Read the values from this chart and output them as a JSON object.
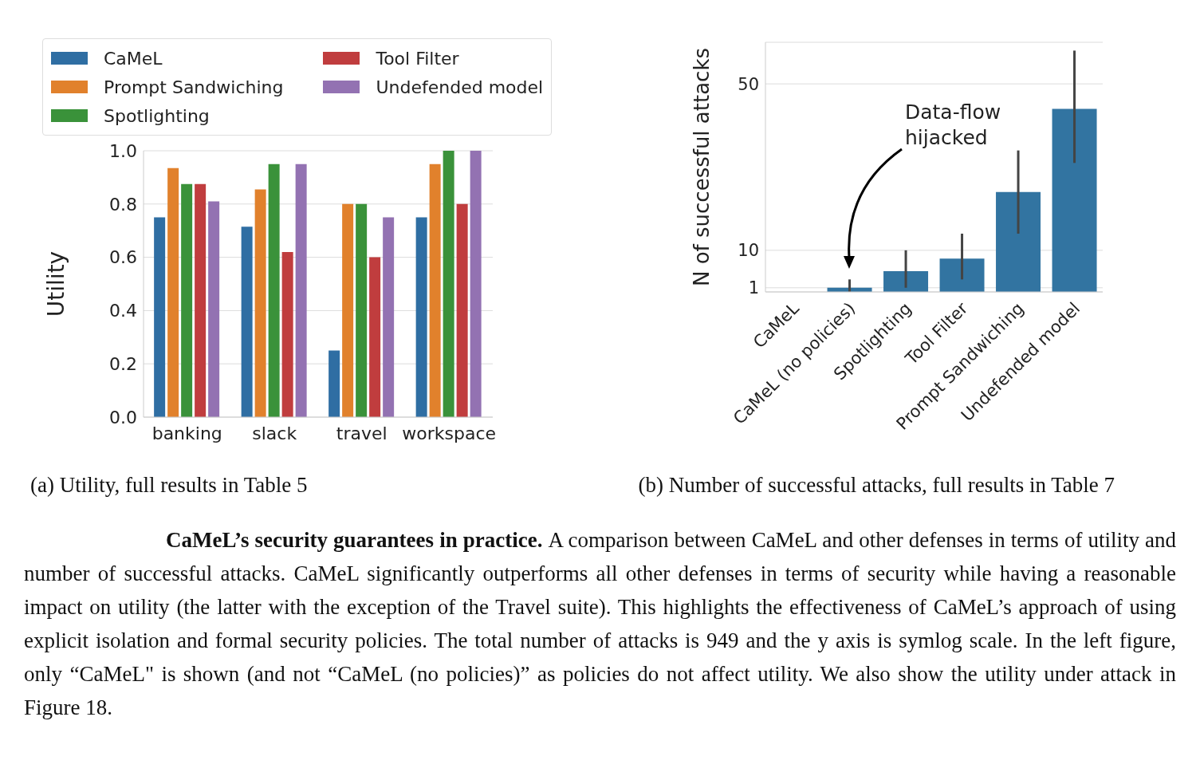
{
  "chart_data": [
    {
      "type": "bar",
      "categories": [
        "banking",
        "slack",
        "travel",
        "workspace"
      ],
      "ylabel": "Utility",
      "series": [
        {
          "name": "CaMeL",
          "color": "#2f6ea3",
          "values": [
            0.75,
            0.715,
            0.25,
            0.75
          ]
        },
        {
          "name": "Prompt Sandwiching",
          "color": "#e1812c",
          "values": [
            0.935,
            0.855,
            0.8,
            0.95
          ]
        },
        {
          "name": "Spotlighting",
          "color": "#3a923a",
          "values": [
            0.875,
            0.95,
            0.8,
            1.0
          ]
        },
        {
          "name": "Tool Filter",
          "color": "#c03d3e",
          "values": [
            0.875,
            0.62,
            0.6,
            0.8
          ]
        },
        {
          "name": "Undefended model",
          "color": "#9372b2",
          "values": [
            0.81,
            0.95,
            0.75,
            1.0
          ]
        }
      ],
      "ylim": [
        0,
        1
      ],
      "yticks": [
        {
          "value": 0,
          "label": "0.0"
        },
        0.2,
        0.4,
        0.6,
        0.8,
        {
          "value": 1,
          "label": "1.0"
        }
      ],
      "grid": "y",
      "legend": "top left",
      "annotations": [
        "(a) Utility, full results in Table 5",
        "CaMeL’s security guarantees in practice.",
        "A comparison between CaMeL and other defenses in terms of utility and number of successful attacks. CaMeL significantly outperforms all other defenses in terms of security while having a reasonable impact on utility (the latter with the exception of the Travel suite). This highlights the effectiveness of CaMeL’s approach of using explicit isolation and formal security policies. The total number of attacks is 949 and the y axis is symlog scale. In the left figure, only “CaMeL\" is shown (and not “CaMeL (no policies)” as policies do not affect utility. We also show the utility under attack in Figure 18."
      ]
    },
    {
      "type": "bar",
      "categories": [
        "CaMeL",
        "CaMeL (no policies)",
        "Spotlighting",
        "Tool Filter",
        "Prompt Sandwiching",
        "Undefended model"
      ],
      "values": [
        0,
        1,
        5,
        8,
        24,
        44
      ],
      "color": "#3274a1",
      "errors": [
        null,
        [
          0,
          3
        ],
        [
          1,
          10
        ],
        [
          3,
          14
        ],
        [
          14,
          34
        ],
        [
          31,
          58
        ]
      ],
      "ylabel": "N of successful attacks",
      "ylim": [
        0,
        60
      ],
      "yticks": [
        1,
        10,
        50
      ],
      "grid": "y",
      "annotations": [
        "(b) Number of successful attacks, full results in Table 7",
        "Data-flow hijacked"
      ]
    }
  ]
}
